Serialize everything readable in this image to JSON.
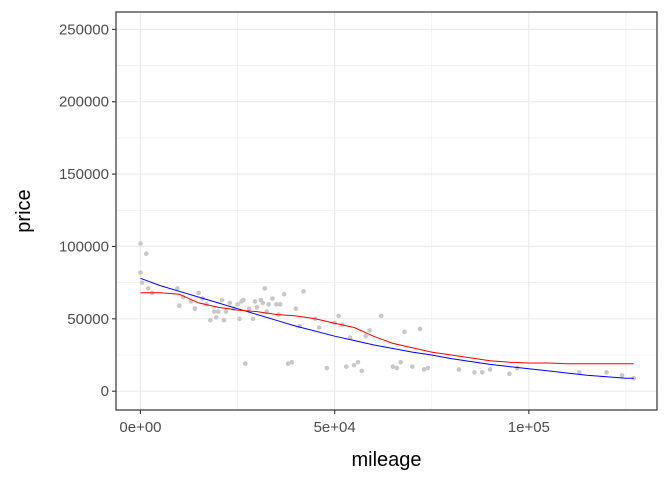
{
  "chart_data": {
    "type": "scatter",
    "title": "",
    "xlabel": "mileage",
    "ylabel": "price",
    "xlim": [
      -6300,
      133000
    ],
    "ylim": [
      -13000,
      262000
    ],
    "x_ticks": [
      {
        "value": 0,
        "label": "0e+00"
      },
      {
        "value": 50000,
        "label": "5e+04"
      },
      {
        "value": 100000,
        "label": "1e+05"
      }
    ],
    "y_ticks": [
      {
        "value": 0,
        "label": "0"
      },
      {
        "value": 50000,
        "label": "50000"
      },
      {
        "value": 100000,
        "label": "100000"
      },
      {
        "value": 150000,
        "label": "150000"
      },
      {
        "value": 200000,
        "label": "200000"
      },
      {
        "value": 250000,
        "label": "250000"
      }
    ],
    "y_minor_ticks": [
      25000,
      75000,
      125000,
      175000,
      225000
    ],
    "x_minor_ticks": [
      25000,
      75000,
      125000
    ],
    "grid": true,
    "series": [
      {
        "kind": "points",
        "color": "#c8c8c8",
        "x": [
          0,
          0,
          400,
          1500,
          2000,
          3000,
          9500,
          10000,
          11000,
          13000,
          14000,
          15000,
          16000,
          17000,
          18000,
          19000,
          19500,
          20000,
          21000,
          21500,
          22000,
          23000,
          24000,
          25000,
          25500,
          26000,
          26500,
          27000,
          28000,
          29000,
          29500,
          30000,
          31000,
          31500,
          32000,
          32500,
          33000,
          34000,
          35000,
          35500,
          36000,
          37000,
          38000,
          39000,
          40000,
          41000,
          42000,
          45000,
          46000,
          48000,
          50000,
          51000,
          52000,
          53000,
          54000,
          55000,
          56000,
          57000,
          58000,
          59000,
          62000,
          65000,
          66000,
          67000,
          68000,
          70000,
          72000,
          73000,
          74000,
          82000,
          86000,
          88000,
          90000,
          95000,
          97000,
          113000,
          120000,
          124000,
          127000
        ],
        "y": [
          102000,
          82000,
          75000,
          95000,
          71000,
          68000,
          71000,
          59000,
          65000,
          62000,
          57000,
          68000,
          64000,
          60000,
          49000,
          55000,
          51000,
          55000,
          63000,
          49000,
          55000,
          61000,
          57000,
          60000,
          50000,
          62000,
          63000,
          19000,
          57000,
          50000,
          62000,
          58000,
          63000,
          61000,
          71000,
          55000,
          60000,
          64000,
          60000,
          53000,
          60000,
          67000,
          19000,
          20000,
          57000,
          45000,
          69000,
          50000,
          44000,
          16000,
          47000,
          52000,
          46000,
          17000,
          37000,
          18000,
          20000,
          14000,
          38000,
          42000,
          52000,
          17000,
          16000,
          20000,
          41000,
          17000,
          43000,
          15000,
          16000,
          15000,
          13000,
          13000,
          15000,
          12000,
          16000,
          13000,
          13000,
          11000,
          9000
        ]
      },
      {
        "kind": "line",
        "color": "#0000ff",
        "x": [
          0,
          5000,
          10000,
          15000,
          20000,
          25000,
          30000,
          35000,
          40000,
          45000,
          50000,
          55000,
          60000,
          65000,
          70000,
          75000,
          80000,
          85000,
          90000,
          95000,
          100000,
          105000,
          110000,
          115000,
          120000,
          125000,
          127000
        ],
        "y": [
          78000,
          73000,
          69000,
          65000,
          61000,
          57000,
          53000,
          49000,
          45000,
          41500,
          38000,
          35000,
          32000,
          29500,
          27000,
          25000,
          22500,
          20500,
          18500,
          17000,
          15500,
          14000,
          12500,
          11000,
          10000,
          9000,
          9000
        ]
      },
      {
        "kind": "line",
        "color": "#ff0000",
        "x": [
          0,
          5000,
          10000,
          15000,
          20000,
          25000,
          30000,
          35000,
          40000,
          45000,
          50000,
          55000,
          60000,
          65000,
          70000,
          75000,
          80000,
          85000,
          90000,
          95000,
          100000,
          105000,
          110000,
          115000,
          120000,
          125000,
          127000
        ],
        "y": [
          68000,
          68000,
          67000,
          61000,
          58000,
          56000,
          55000,
          53000,
          52000,
          50000,
          47000,
          44000,
          38000,
          33000,
          30000,
          27000,
          25000,
          23000,
          21000,
          20000,
          19500,
          19500,
          19000,
          19000,
          19000,
          19000,
          19000
        ]
      }
    ]
  }
}
